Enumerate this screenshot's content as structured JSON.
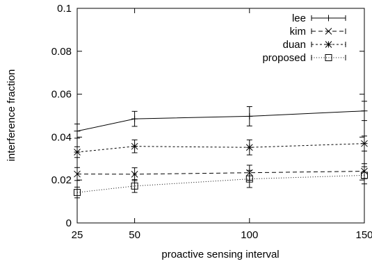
{
  "chart_data": {
    "type": "line",
    "title": "",
    "xlabel": "proactive sensing interval",
    "ylabel": "interference fraction",
    "x": [
      25,
      50,
      100,
      150
    ],
    "xticks": [
      25,
      50,
      100,
      150
    ],
    "xtick_labels": [
      "25",
      "50",
      "100",
      "150"
    ],
    "xlim": [
      25,
      150
    ],
    "ylim": [
      0,
      0.1
    ],
    "yticks": [
      0,
      0.02,
      0.04,
      0.06,
      0.08,
      0.1
    ],
    "ytick_labels": [
      "0",
      "0.02",
      "0.04",
      "0.06",
      "0.08",
      "0.1"
    ],
    "grid": false,
    "legend_position": "top-right",
    "error_bars": true,
    "series": [
      {
        "name": "lee",
        "marker": "plus",
        "line_style": "solid",
        "values": [
          0.0428,
          0.0485,
          0.0497,
          0.0522
        ],
        "errors": [
          0.0033,
          0.0035,
          0.0045,
          0.0045
        ]
      },
      {
        "name": "kim",
        "marker": "cross",
        "line_style": "dashed",
        "values": [
          0.0228,
          0.0227,
          0.0234,
          0.0241
        ],
        "errors": [
          0.003,
          0.003,
          0.0035,
          0.0035
        ]
      },
      {
        "name": "duan",
        "marker": "star",
        "line_style": "short-dashed",
        "values": [
          0.033,
          0.0357,
          0.0352,
          0.037
        ],
        "errors": [
          0.0025,
          0.003,
          0.0035,
          0.0035
        ]
      },
      {
        "name": "proposed",
        "marker": "square",
        "line_style": "dotted",
        "values": [
          0.0142,
          0.0172,
          0.0205,
          0.0222
        ],
        "errors": [
          0.0025,
          0.003,
          0.004,
          0.004
        ]
      }
    ]
  }
}
